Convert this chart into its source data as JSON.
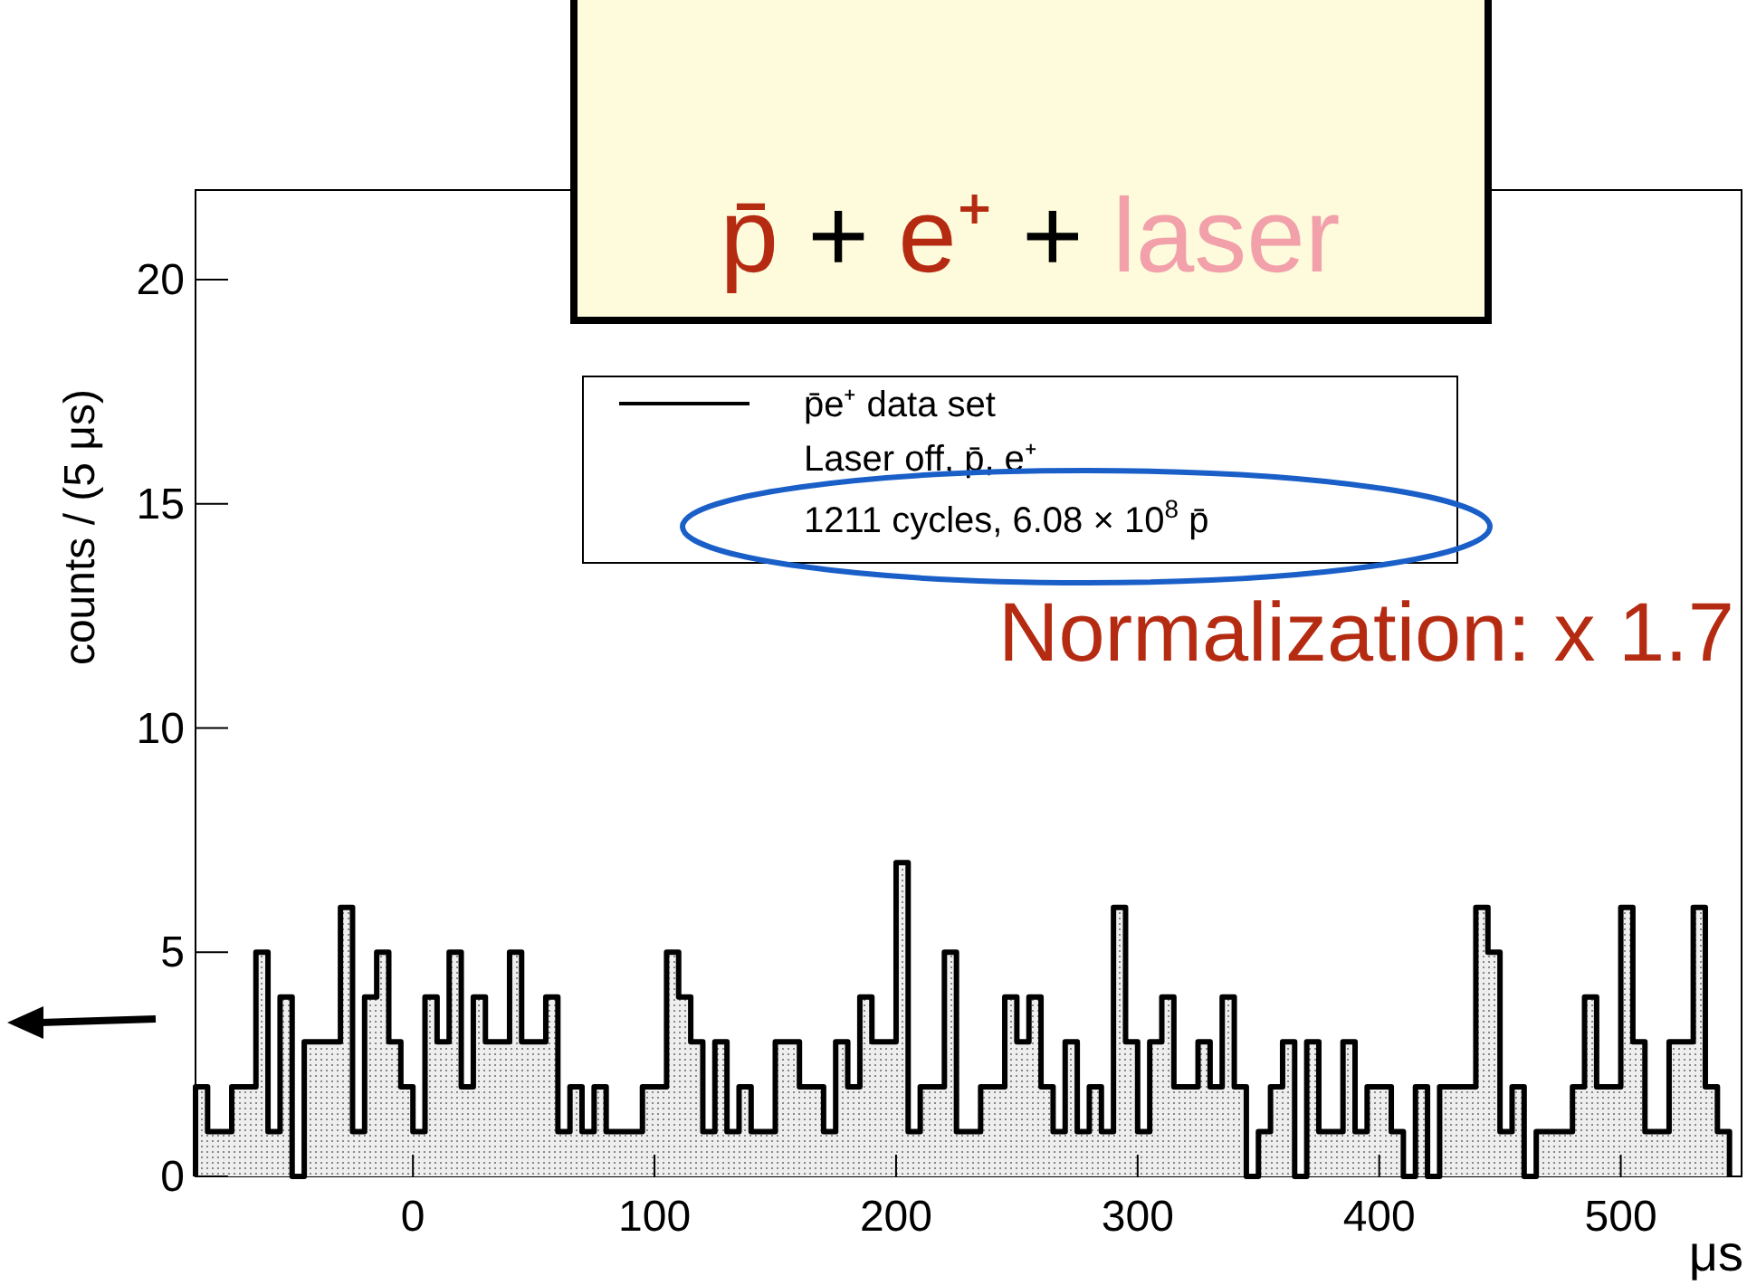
{
  "chart_data": {
    "type": "histogram",
    "title": "p̄ + e⁺ + laser",
    "xlabel": "μs",
    "ylabel": "counts / (5 μs)",
    "bins": [
      -90,
      -85,
      -80,
      -75,
      -70,
      -65,
      -60,
      -55,
      -50,
      -45,
      -40,
      -35,
      -30,
      -25,
      -20,
      -15,
      -10,
      -5,
      0,
      5,
      10,
      15,
      20,
      25,
      30,
      35,
      40,
      45,
      50,
      55,
      60,
      65,
      70,
      75,
      80,
      85,
      90,
      95,
      100,
      105,
      110,
      115,
      120,
      125,
      130,
      135,
      140,
      145,
      150,
      155,
      160,
      165,
      170,
      175,
      180,
      185,
      190,
      195,
      200,
      205,
      210,
      215,
      220,
      225,
      230,
      235,
      240,
      245,
      250,
      255,
      260,
      265,
      270,
      275,
      280,
      285,
      290,
      295,
      300,
      305,
      310,
      315,
      320,
      325,
      330,
      335,
      340,
      345,
      350,
      355,
      360,
      365,
      370,
      375,
      380,
      385,
      390,
      395,
      400,
      405,
      410,
      415,
      420,
      425,
      430,
      435,
      440,
      445,
      450,
      455,
      460,
      465,
      470,
      475,
      480,
      485,
      490,
      495,
      500,
      505,
      510,
      515,
      520,
      525,
      530,
      535,
      540,
      545
    ],
    "series": [
      {
        "name": "p̄e⁺ data set",
        "color": "#000000",
        "values": [
          2,
          1,
          1,
          2,
          2,
          5,
          1,
          4,
          0,
          3,
          3,
          3,
          6,
          1,
          4,
          5,
          3,
          2,
          1,
          4,
          3,
          5,
          2,
          4,
          3,
          3,
          5,
          3,
          3,
          4,
          1,
          2,
          1,
          2,
          1,
          1,
          1,
          2,
          2,
          5,
          4,
          3,
          1,
          3,
          1,
          2,
          1,
          1,
          3,
          3,
          2,
          2,
          1,
          3,
          2,
          4,
          3,
          3,
          7,
          1,
          2,
          2,
          5,
          1,
          1,
          2,
          2,
          4,
          3,
          4,
          2,
          1,
          3,
          1,
          2,
          1,
          6,
          3,
          1,
          3,
          4,
          2,
          2,
          3,
          2,
          4,
          2,
          0,
          1,
          2,
          3,
          0,
          3,
          1,
          1,
          3,
          1,
          2,
          2,
          1,
          0,
          2,
          0,
          2,
          2,
          2,
          6,
          5,
          1,
          2,
          0,
          1,
          1,
          1,
          2,
          4,
          2,
          2,
          6,
          3,
          1,
          1,
          3,
          3,
          6,
          2,
          1
        ]
      }
    ],
    "xlim": [
      -90,
      550
    ],
    "xticks": [
      0,
      100,
      200,
      300,
      400,
      500
    ],
    "ylim": [
      0,
      22
    ],
    "yticks": [
      0,
      5,
      10,
      15,
      20
    ],
    "legend": "top",
    "grid": false,
    "annotations": [
      "Laser off, p̄, e⁺",
      "1211 cycles, 6.08 × 10$^{8}$ p̄",
      "Normalization: x 1.7"
    ]
  }
}
